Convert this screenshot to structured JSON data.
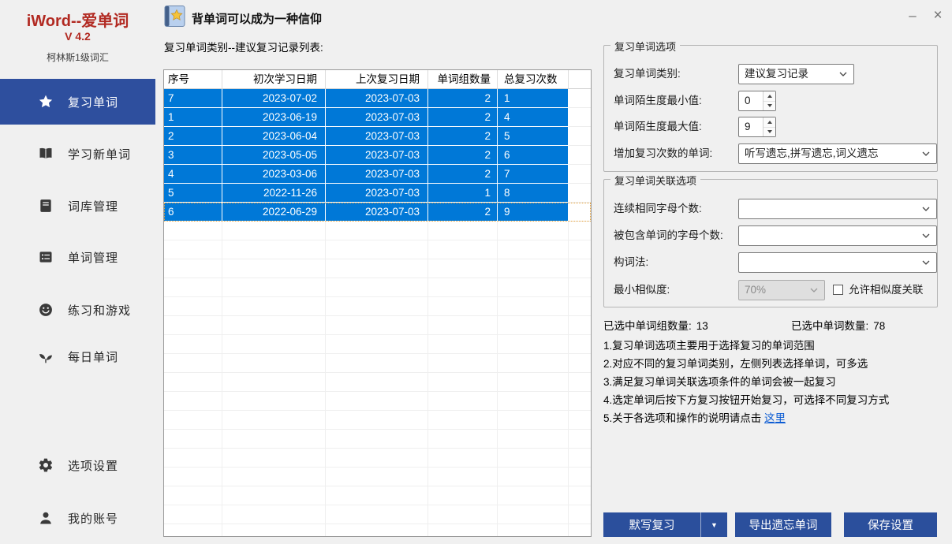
{
  "window": {
    "minimize_icon": "–",
    "close_icon": "×"
  },
  "topbar": {
    "slogan": "背单词可以成为一种信仰"
  },
  "sidebar": {
    "app_title": "iWord--爱单词",
    "version": "V 4.2",
    "dictionary": "柯林斯1级词汇",
    "items": [
      {
        "label": "复习单词",
        "icon": "star-icon",
        "active": true
      },
      {
        "label": "学习新单词",
        "icon": "open-book-icon",
        "active": false
      },
      {
        "label": "词库管理",
        "icon": "book-icon",
        "active": false
      },
      {
        "label": "单词管理",
        "icon": "list-icon",
        "active": false
      },
      {
        "label": "练习和游戏",
        "icon": "smiley-icon",
        "active": false
      },
      {
        "label": "每日单词",
        "icon": "sprout-icon",
        "active": false
      },
      {
        "label": "选项设置",
        "icon": "gear-icon",
        "active": false
      },
      {
        "label": "我的账号",
        "icon": "user-icon",
        "active": false
      }
    ]
  },
  "table": {
    "caption": "复习单词类别--建议复习记录列表:",
    "headers": [
      "序号",
      "初次学习日期",
      "上次复习日期",
      "单词组数量",
      "总复习次数"
    ],
    "rows": [
      [
        "7",
        "2023-07-02",
        "2023-07-03",
        "2",
        "1"
      ],
      [
        "1",
        "2023-06-19",
        "2023-07-03",
        "2",
        "4"
      ],
      [
        "2",
        "2023-06-04",
        "2023-07-03",
        "2",
        "5"
      ],
      [
        "3",
        "2023-05-05",
        "2023-07-03",
        "2",
        "6"
      ],
      [
        "4",
        "2023-03-06",
        "2023-07-03",
        "2",
        "7"
      ],
      [
        "5",
        "2022-11-26",
        "2023-07-03",
        "1",
        "8"
      ],
      [
        "6",
        "2022-06-29",
        "2023-07-03",
        "2",
        "9"
      ]
    ],
    "selected_all": true
  },
  "options_group": {
    "title": "复习单词选项",
    "category_label": "复习单词类别:",
    "category_value": "建议复习记录",
    "min_label": "单词陌生度最小值:",
    "min_value": "0",
    "max_label": "单词陌生度最大值:",
    "max_value": "9",
    "extra_label": "增加复习次数的单词:",
    "extra_value": "听写遗忘,拼写遗忘,词义遗忘"
  },
  "relation_group": {
    "title": "复习单词关联选项",
    "same_letters_label": "连续相同字母个数:",
    "same_letters_value": "",
    "contained_label": "被包含单词的字母个数:",
    "contained_value": "",
    "word_formation_label": "构词法:",
    "word_formation_value": "",
    "similarity_label": "最小相似度:",
    "similarity_value": "70%",
    "similarity_disabled": true,
    "similarity_checkbox_checked": false,
    "similarity_checkbox_label": "允许相似度关联"
  },
  "stats": {
    "groups_label": "已选中单词组数量:",
    "groups_value": "13",
    "words_label": "已选中单词数量:",
    "words_value": "78"
  },
  "instructions": {
    "lines": [
      "1.复习单词选项主要用于选择复习的单词范围",
      "2.对应不同的复习单词类别，左侧列表选择单词，可多选",
      "3.满足复习单词关联选项条件的单词会被一起复习",
      "4.选定单词后按下方复习按钮开始复习，可选择不同复习方式",
      "5.关于各选项和操作的说明请点击 "
    ],
    "link_label": "这里"
  },
  "buttons": {
    "review": "默写复习",
    "review_dropdown_icon": "▼",
    "export": "导出遗忘单词",
    "save": "保存设置"
  },
  "colors": {
    "accent_blue": "#2e4f9e",
    "selection_blue": "#0078d7",
    "title_red": "#b22a22",
    "link_blue": "#0b5bd3",
    "button_blue": "#2b4f9c",
    "background": "#f0f0f0"
  }
}
